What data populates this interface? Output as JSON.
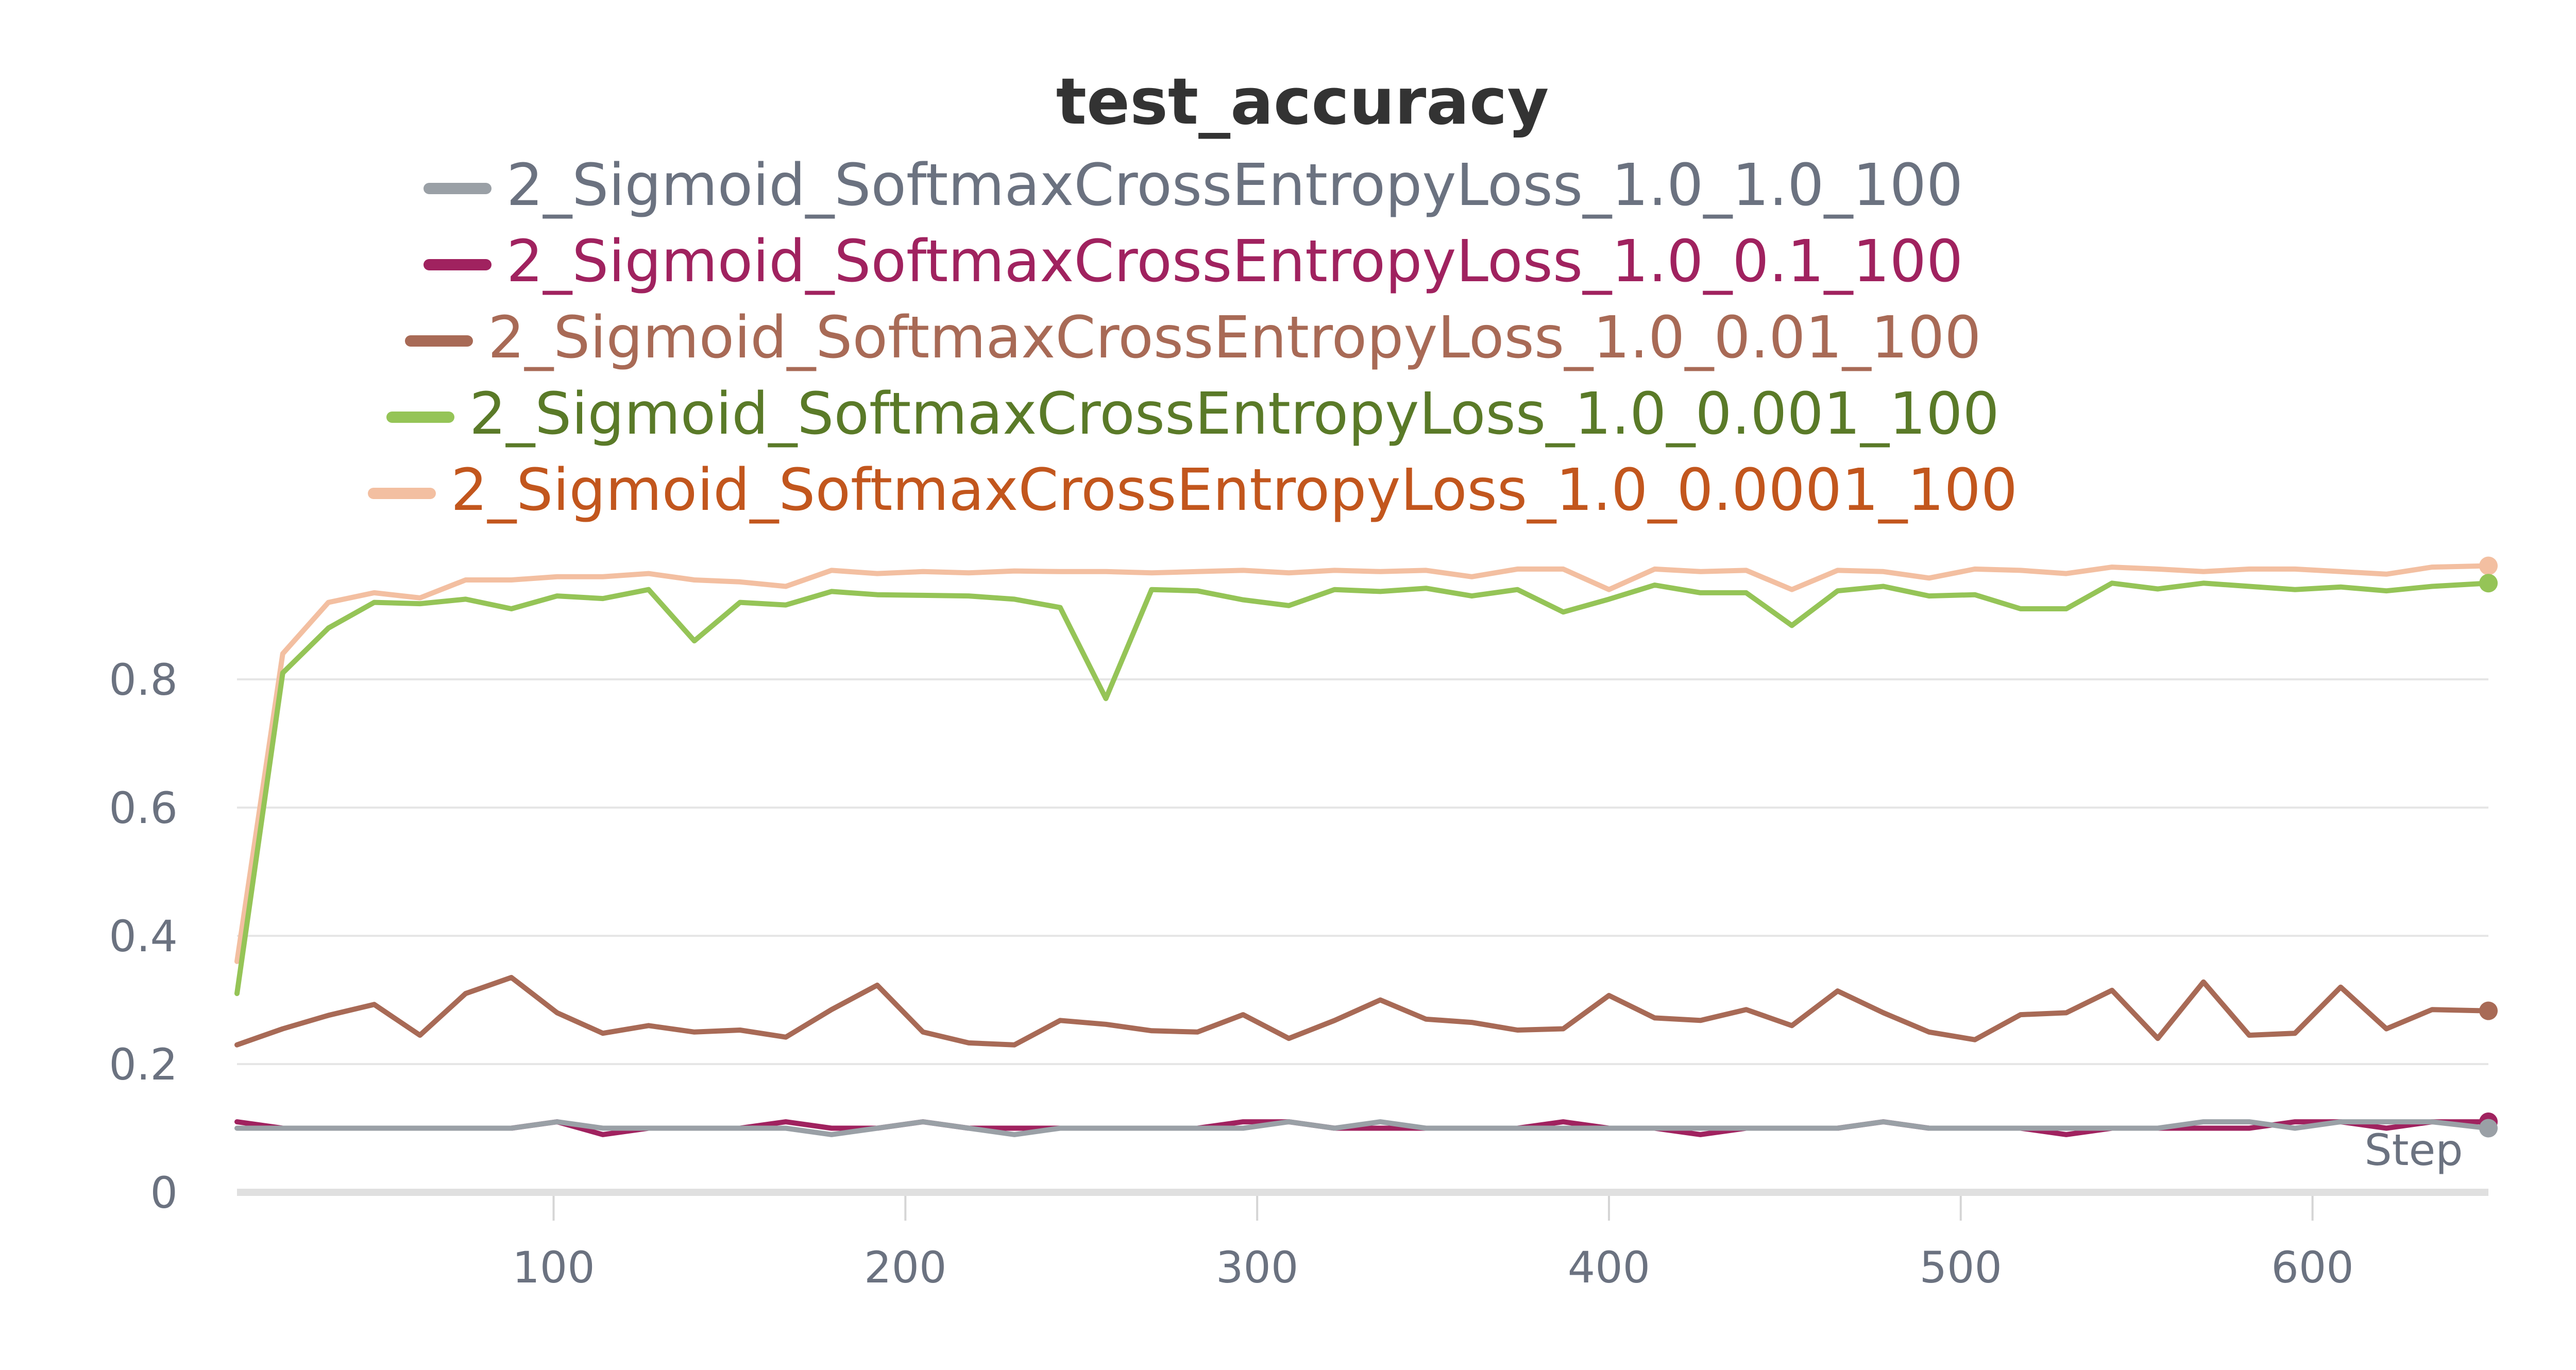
{
  "chart_data": {
    "type": "line",
    "title": "test_accuracy",
    "xlabel": "Step",
    "ylabel": "",
    "xlim": [
      10,
      650
    ],
    "ylim": [
      0,
      1.0
    ],
    "x_ticks": [
      100,
      200,
      300,
      400,
      500,
      600
    ],
    "y_ticks": [
      0,
      0.2,
      0.4,
      0.6,
      0.8
    ],
    "y_tick_labels": [
      "0",
      "0.2",
      "0.4",
      "0.6",
      "0.8"
    ],
    "grid": true,
    "legend_position": "top-center",
    "x": [
      10,
      23,
      36,
      49,
      62,
      75,
      88,
      101,
      114,
      127,
      140,
      153,
      166,
      179,
      192,
      205,
      218,
      231,
      244,
      257,
      270,
      283,
      296,
      309,
      322,
      335,
      348,
      361,
      374,
      387,
      400,
      413,
      426,
      439,
      452,
      465,
      478,
      491,
      504,
      517,
      530,
      543,
      556,
      569,
      582,
      595,
      608,
      621,
      634,
      650
    ],
    "series": [
      {
        "name": "2_Sigmoid_SoftmaxCrossEntropyLoss_1.0_1.0_100",
        "color": "#9aa0a6",
        "text_color": "#6b7280",
        "values": [
          0.1,
          0.1,
          0.1,
          0.1,
          0.1,
          0.1,
          0.1,
          0.11,
          0.1,
          0.1,
          0.1,
          0.1,
          0.1,
          0.09,
          0.1,
          0.11,
          0.1,
          0.09,
          0.1,
          0.1,
          0.1,
          0.1,
          0.1,
          0.11,
          0.1,
          0.11,
          0.1,
          0.1,
          0.1,
          0.1,
          0.1,
          0.1,
          0.1,
          0.1,
          0.1,
          0.1,
          0.11,
          0.1,
          0.1,
          0.1,
          0.1,
          0.1,
          0.1,
          0.11,
          0.11,
          0.1,
          0.11,
          0.11,
          0.11,
          0.1
        ]
      },
      {
        "name": "2_Sigmoid_SoftmaxCrossEntropyLoss_1.0_0.1_100",
        "color": "#a0225f",
        "text_color": "#a0225f",
        "values": [
          0.11,
          0.1,
          0.1,
          0.1,
          0.1,
          0.1,
          0.1,
          0.11,
          0.09,
          0.1,
          0.1,
          0.1,
          0.11,
          0.1,
          0.1,
          0.11,
          0.1,
          0.1,
          0.1,
          0.1,
          0.1,
          0.1,
          0.11,
          0.11,
          0.1,
          0.1,
          0.1,
          0.1,
          0.1,
          0.11,
          0.1,
          0.1,
          0.09,
          0.1,
          0.1,
          0.1,
          0.11,
          0.1,
          0.1,
          0.1,
          0.09,
          0.1,
          0.1,
          0.1,
          0.1,
          0.11,
          0.11,
          0.1,
          0.11,
          0.11
        ]
      },
      {
        "name": "2_Sigmoid_SoftmaxCrossEntropyLoss_1.0_0.01_100",
        "color": "#a86a56",
        "text_color": "#a86a56",
        "values": [
          0.23,
          0.255,
          0.276,
          0.293,
          0.245,
          0.31,
          0.335,
          0.28,
          0.248,
          0.26,
          0.25,
          0.253,
          0.242,
          0.285,
          0.323,
          0.25,
          0.233,
          0.23,
          0.268,
          0.262,
          0.252,
          0.25,
          0.277,
          0.24,
          0.268,
          0.3,
          0.27,
          0.265,
          0.253,
          0.255,
          0.307,
          0.272,
          0.268,
          0.285,
          0.26,
          0.314,
          0.28,
          0.25,
          0.238,
          0.277,
          0.28,
          0.315,
          0.24,
          0.328,
          0.245,
          0.248,
          0.32,
          0.255,
          0.285,
          0.283
        ]
      },
      {
        "name": "2_Sigmoid_SoftmaxCrossEntropyLoss_1.0_0.001_100",
        "color": "#95c457",
        "text_color": "#5a7a28",
        "values": [
          0.31,
          0.81,
          0.88,
          0.92,
          0.918,
          0.925,
          0.91,
          0.93,
          0.926,
          0.94,
          0.86,
          0.92,
          0.916,
          0.937,
          0.932,
          0.931,
          0.93,
          0.925,
          0.912,
          0.77,
          0.94,
          0.938,
          0.924,
          0.915,
          0.94,
          0.937,
          0.942,
          0.93,
          0.94,
          0.905,
          0.925,
          0.947,
          0.935,
          0.935,
          0.884,
          0.938,
          0.945,
          0.93,
          0.932,
          0.91,
          0.91,
          0.95,
          0.941,
          0.95,
          0.945,
          0.94,
          0.944,
          0.938,
          0.945,
          0.95
        ]
      },
      {
        "name": "2_Sigmoid_SoftmaxCrossEntropyLoss_1.0_0.0001_100",
        "color": "#f3bfa1",
        "text_color": "#c2561d",
        "values": [
          0.36,
          0.84,
          0.92,
          0.935,
          0.927,
          0.955,
          0.955,
          0.96,
          0.96,
          0.965,
          0.955,
          0.952,
          0.945,
          0.97,
          0.965,
          0.968,
          0.966,
          0.969,
          0.968,
          0.968,
          0.966,
          0.968,
          0.97,
          0.966,
          0.97,
          0.968,
          0.97,
          0.96,
          0.972,
          0.972,
          0.94,
          0.972,
          0.968,
          0.97,
          0.94,
          0.97,
          0.968,
          0.958,
          0.972,
          0.97,
          0.965,
          0.975,
          0.972,
          0.968,
          0.972,
          0.972,
          0.968,
          0.964,
          0.975,
          0.977
        ]
      }
    ]
  }
}
